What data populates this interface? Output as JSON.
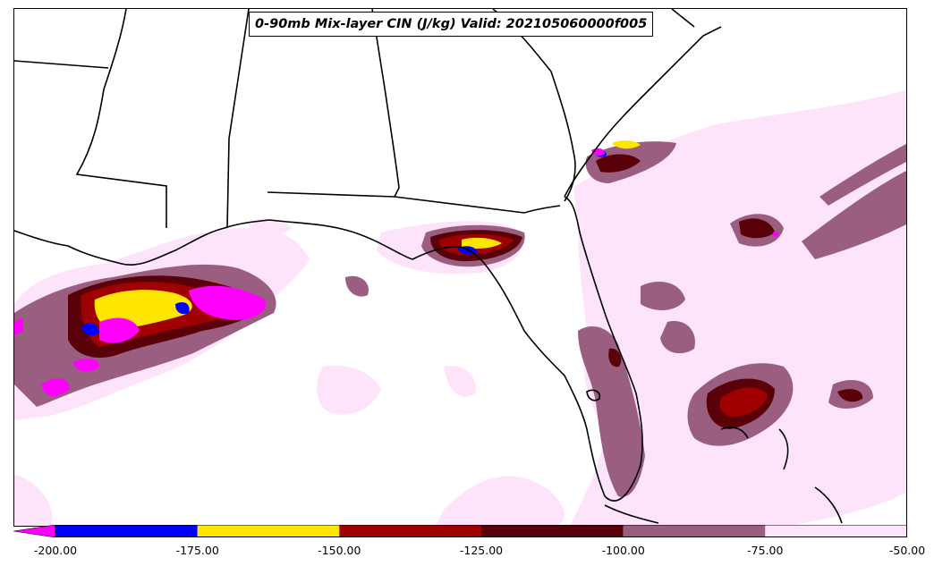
{
  "title": "0-90mb Mix-layer CIN (J/kg) Valid: 202105060000f005",
  "colorbar": {
    "levels": [
      -200.0,
      -175.0,
      -150.0,
      -125.0,
      -100.0,
      -75.0,
      -50.0
    ],
    "tick_labels": [
      "-200.00",
      "-175.00",
      "-150.00",
      "-125.00",
      "-100.00",
      "-75.00",
      "-50.00"
    ],
    "under_color": "#ff00ff",
    "colors": [
      "#0000ff",
      "#ffe600",
      "#a00000",
      "#5a0008",
      "#9a5f80",
      "#fde4fb"
    ]
  },
  "map_colors": {
    "land": "#ffffff",
    "boundary": "#000000",
    "light": "#fde4fb",
    "mauve": "#9a5f80",
    "maroon": "#5a0008",
    "red": "#a00000",
    "yellow": "#ffe600",
    "blue": "#0000ff",
    "magenta": "#ff00ff"
  }
}
